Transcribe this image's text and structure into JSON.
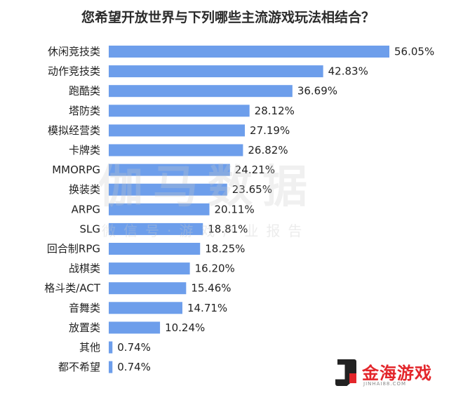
{
  "chart_data": {
    "type": "bar",
    "orientation": "horizontal",
    "title": "您希望开放世界与下列哪些主流游戏玩法相结合？",
    "categories": [
      "休闲竞技类",
      "动作竞技类",
      "跑酷类",
      "塔防类",
      "模拟经营类",
      "卡牌类",
      "MMORPG",
      "换装类",
      "ARPG",
      "SLG",
      "回合制RPG",
      "战棋类",
      "格斗类/ACT",
      "音舞类",
      "放置类",
      "其他",
      "都不希望"
    ],
    "values": [
      56.05,
      42.83,
      36.69,
      28.12,
      27.19,
      26.82,
      24.21,
      23.65,
      20.11,
      18.81,
      18.25,
      16.2,
      15.46,
      14.71,
      10.24,
      0.74,
      0.74
    ],
    "value_labels": [
      "56.05%",
      "42.83%",
      "36.69%",
      "28.12%",
      "27.19%",
      "26.82%",
      "24.21%",
      "23.65%",
      "20.11%",
      "18.81%",
      "18.25%",
      "16.20%",
      "15.46%",
      "14.71%",
      "10.24%",
      "0.74%",
      "0.74%"
    ],
    "bar_color": "#6d9eeb",
    "grid": false
  },
  "watermark": {
    "main": "伽马数据",
    "sub": "微信号·游戏产业报告"
  },
  "brand": {
    "name": "金海游戏",
    "url": "JINHAI88.COM",
    "color": "#e3262b"
  }
}
